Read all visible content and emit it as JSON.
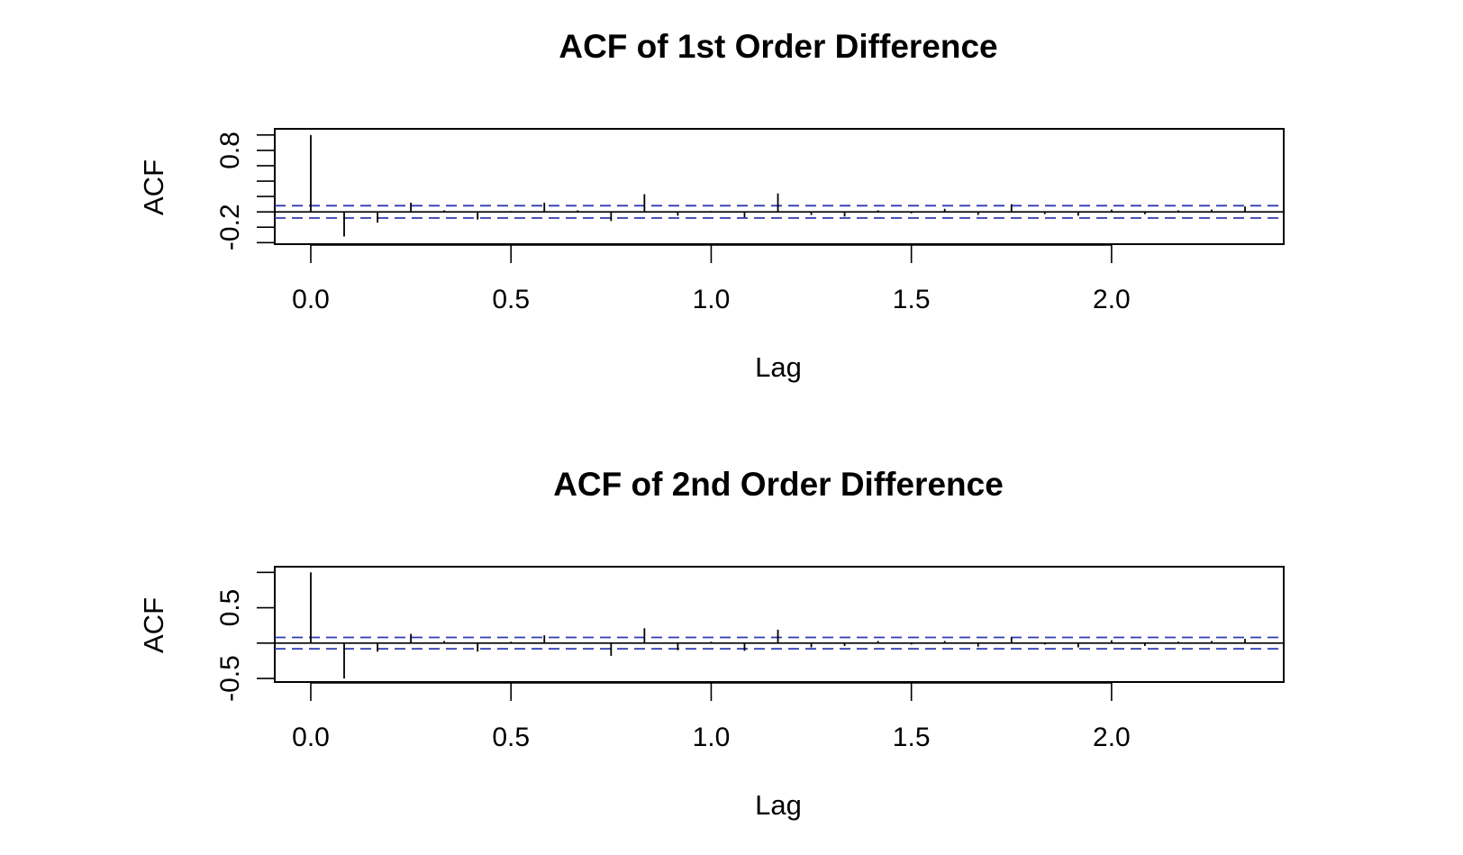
{
  "chart_data": [
    {
      "type": "bar",
      "title": "ACF of 1st Order Difference",
      "xlabel": "Lag",
      "ylabel": "ACF",
      "xlim": [
        -0.09,
        2.43
      ],
      "ylim": [
        -0.42,
        1.08
      ],
      "x_ticks": [
        0.0,
        0.5,
        1.0,
        1.5,
        2.0
      ],
      "x_tick_labels": [
        "0.0",
        "0.5",
        "1.0",
        "1.5",
        "2.0"
      ],
      "y_ticks": [
        -0.2,
        0.8
      ],
      "y_tick_labels": [
        "-0.2",
        "0.8"
      ],
      "y_minor_ticks": [
        -0.4,
        -0.2,
        0.0,
        0.2,
        0.4,
        0.6,
        0.8,
        1.0
      ],
      "confidence_bound": 0.08,
      "x": [
        0.0,
        0.0833,
        0.1667,
        0.25,
        0.3333,
        0.4167,
        0.5,
        0.5833,
        0.6667,
        0.75,
        0.8333,
        0.9167,
        1.0,
        1.0833,
        1.1667,
        1.25,
        1.3333,
        1.4167,
        1.5,
        1.5833,
        1.6667,
        1.75,
        1.8333,
        1.9167,
        2.0,
        2.0833,
        2.1667,
        2.25,
        2.3333
      ],
      "values": [
        1.0,
        -0.32,
        -0.14,
        0.12,
        0.02,
        -0.1,
        0.01,
        0.12,
        0.02,
        -0.12,
        0.23,
        -0.05,
        0.01,
        -0.07,
        0.24,
        -0.04,
        -0.06,
        0.02,
        -0.02,
        0.04,
        -0.04,
        0.1,
        -0.03,
        -0.05,
        0.03,
        -0.03,
        0.02,
        0.03,
        0.07
      ],
      "colors": {
        "bars": "#000000",
        "zero_line": "#000000",
        "confidence": "#2e3bb0",
        "frame": "#000000"
      }
    },
    {
      "type": "bar",
      "title": "ACF of 2nd Order Difference",
      "xlabel": "Lag",
      "ylabel": "ACF",
      "xlim": [
        -0.09,
        2.43
      ],
      "ylim": [
        -0.55,
        1.08
      ],
      "x_ticks": [
        0.0,
        0.5,
        1.0,
        1.5,
        2.0
      ],
      "x_tick_labels": [
        "0.0",
        "0.5",
        "1.0",
        "1.5",
        "2.0"
      ],
      "y_ticks": [
        -0.5,
        0.5
      ],
      "y_tick_labels": [
        "-0.5",
        "0.5"
      ],
      "y_minor_ticks": [
        -0.5,
        0.0,
        0.5,
        1.0
      ],
      "confidence_bound": 0.08,
      "x": [
        0.0,
        0.0833,
        0.1667,
        0.25,
        0.3333,
        0.4167,
        0.5,
        0.5833,
        0.6667,
        0.75,
        0.8333,
        0.9167,
        1.0,
        1.0833,
        1.1667,
        1.25,
        1.3333,
        1.4167,
        1.5,
        1.5833,
        1.6667,
        1.75,
        1.8333,
        1.9167,
        2.0,
        2.0833,
        2.1667,
        2.25,
        2.3333
      ],
      "values": [
        1.0,
        -0.5,
        -0.12,
        0.13,
        0.03,
        -0.12,
        0.02,
        0.11,
        0.01,
        -0.18,
        0.21,
        -0.1,
        0.02,
        -0.11,
        0.19,
        -0.06,
        -0.04,
        0.03,
        -0.02,
        0.03,
        -0.05,
        0.08,
        -0.02,
        -0.06,
        0.04,
        -0.04,
        0.02,
        0.03,
        0.06
      ],
      "colors": {
        "bars": "#000000",
        "zero_line": "#000000",
        "confidence": "#2e3bb0",
        "frame": "#000000"
      }
    }
  ]
}
